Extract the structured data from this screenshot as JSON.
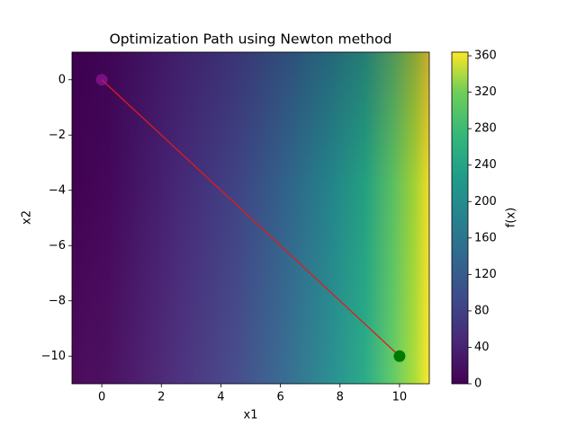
{
  "chart_data": {
    "type": "contour",
    "title": "Optimization Path using Newton method",
    "xlabel": "x1",
    "ylabel": "x2",
    "xlim": [
      -1,
      11
    ],
    "ylim": [
      -11,
      1
    ],
    "xticks": [
      0,
      2,
      4,
      6,
      8,
      10
    ],
    "yticks": [
      {
        "value": 0,
        "label": "0"
      },
      {
        "value": -2,
        "label": "−2"
      },
      {
        "value": -4,
        "label": "−4"
      },
      {
        "value": -6,
        "label": "−6"
      },
      {
        "value": -8,
        "label": "−8"
      },
      {
        "value": -10,
        "label": "−10"
      }
    ],
    "colorbar": {
      "label": "f(x)",
      "lim": [
        0,
        364
      ],
      "ticks": [
        0,
        40,
        80,
        120,
        160,
        200,
        240,
        280,
        320,
        360
      ]
    },
    "path": {
      "x": [
        10,
        0
      ],
      "y": [
        -10,
        0
      ],
      "color": "#e31a1c"
    },
    "markers": [
      {
        "x": 10,
        "y": -10,
        "color": "#007a00"
      },
      {
        "x": 0,
        "y": 0,
        "color": "#a0179e"
      }
    ]
  }
}
